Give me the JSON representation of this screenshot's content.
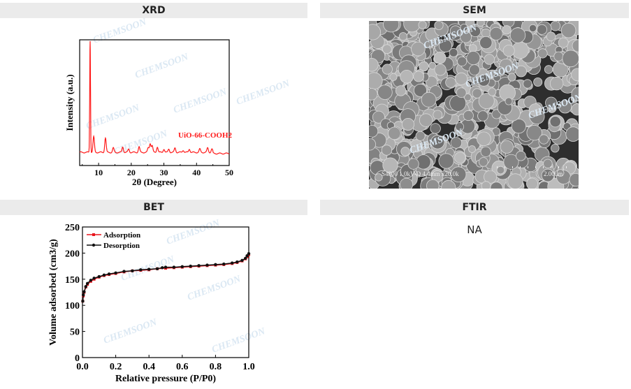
{
  "sections": [
    {
      "title": "XRD"
    },
    {
      "title": "SEM"
    },
    {
      "title": "BET"
    },
    {
      "title": "FTIR"
    }
  ],
  "ftir_text": "NA",
  "watermark": "CHEMSOON",
  "sem": {
    "info": "S4800 1.0kV-D 4.4mm x20.0k",
    "scale": "2.00um"
  },
  "colors": {
    "adsorption": "#e8141c",
    "desorption": "#111111",
    "xrd": "#ff1a1a",
    "header_bg": "#ebebeb"
  },
  "chart_data": [
    {
      "type": "line",
      "title": "",
      "xlabel": "2θ (Degree)",
      "ylabel": "Intensity (a.u.)",
      "xlim": [
        4.2,
        50
      ],
      "xticks": [
        10,
        20,
        30,
        40,
        50
      ],
      "yticks": [],
      "label": "UiO-66-COOH2",
      "peaks": [
        {
          "x": 7.4,
          "y": 100
        },
        {
          "x": 8.5,
          "y": 14
        },
        {
          "x": 12.1,
          "y": 13
        },
        {
          "x": 14.5,
          "y": 4
        },
        {
          "x": 17.4,
          "y": 5
        },
        {
          "x": 19.2,
          "y": 3
        },
        {
          "x": 22.4,
          "y": 5
        },
        {
          "x": 25.2,
          "y": 4
        },
        {
          "x": 25.8,
          "y": 8
        },
        {
          "x": 26.4,
          "y": 6
        },
        {
          "x": 28.0,
          "y": 5
        },
        {
          "x": 30.0,
          "y": 3
        },
        {
          "x": 31.5,
          "y": 3
        },
        {
          "x": 33.4,
          "y": 4
        },
        {
          "x": 35.9,
          "y": 2
        },
        {
          "x": 37.8,
          "y": 3
        },
        {
          "x": 41.0,
          "y": 3
        },
        {
          "x": 43.4,
          "y": 4
        },
        {
          "x": 44.7,
          "y": 3
        }
      ],
      "baseline": 3
    },
    {
      "type": "line",
      "title": "",
      "xlabel": "Relative pressure  (P/P0)",
      "ylabel": "Volume adsorbed (cm3/g)",
      "xlim": [
        0,
        1.0
      ],
      "ylim": [
        0,
        250
      ],
      "xticks": [
        "0.0",
        "0.2",
        "0.4",
        "0.6",
        "0.8",
        "1.0"
      ],
      "yticks": [
        "0",
        "50",
        "100",
        "150",
        "200",
        "250"
      ],
      "legend": "top-left",
      "series": [
        {
          "name": "Adsorption",
          "x": [
            0.002,
            0.005,
            0.01,
            0.02,
            0.03,
            0.05,
            0.07,
            0.1,
            0.13,
            0.16,
            0.2,
            0.25,
            0.3,
            0.35,
            0.4,
            0.45,
            0.5,
            0.55,
            0.6,
            0.65,
            0.7,
            0.75,
            0.8,
            0.85,
            0.9,
            0.93,
            0.96,
            0.98,
            0.99,
            1.0
          ],
          "y": [
            108,
            118,
            125,
            135,
            140,
            146,
            150,
            154,
            157,
            159,
            161,
            164,
            166,
            167,
            168,
            170,
            171,
            172,
            173,
            174,
            175,
            176,
            177,
            178,
            180,
            182,
            185,
            189,
            193,
            197
          ]
        },
        {
          "name": "Desorption",
          "x": [
            1.0,
            0.99,
            0.98,
            0.96,
            0.93,
            0.9,
            0.85,
            0.8,
            0.75,
            0.7,
            0.65,
            0.6,
            0.55,
            0.5,
            0.48,
            0.45,
            0.4,
            0.35,
            0.3,
            0.25,
            0.2,
            0.16,
            0.13,
            0.1,
            0.07,
            0.05,
            0.03,
            0.02,
            0.01,
            0.005,
            0.002
          ],
          "y": [
            199,
            195,
            190,
            186,
            183,
            181,
            179,
            178,
            177,
            176,
            175,
            174,
            173,
            173,
            172,
            170,
            169,
            168,
            166,
            165,
            162,
            160,
            158,
            155,
            152,
            148,
            142,
            136,
            126,
            120,
            108
          ]
        }
      ]
    }
  ]
}
